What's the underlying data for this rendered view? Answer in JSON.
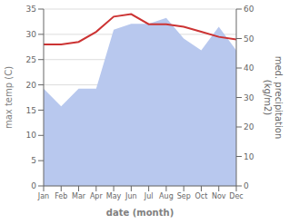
{
  "chart_data": {
    "type": "line",
    "categories": [
      "Jan",
      "Feb",
      "Mar",
      "Apr",
      "May",
      "Jun",
      "Jul",
      "Aug",
      "Sep",
      "Oct",
      "Nov",
      "Dec"
    ],
    "series": [
      {
        "type": "area",
        "axis": "y2",
        "color": "#b8c8ee",
        "values": [
          33.0,
          27.0,
          33.0,
          33.0,
          53.0,
          55.0,
          55.0,
          57.0,
          50.0,
          46.0,
          54.0,
          46.0
        ]
      },
      {
        "type": "line",
        "color": "#cc3333",
        "values": [
          28.0,
          28.0,
          28.5,
          30.5,
          33.5,
          34.0,
          32.0,
          32.0,
          31.5,
          30.5,
          29.5,
          29.0
        ]
      }
    ],
    "xlabel": "date (month)",
    "ylabel": "max temp (C)",
    "y2label": "med. precipitation\n(kg/m2)",
    "ylim": [
      0,
      35
    ],
    "yticks": [
      0,
      5,
      10,
      15,
      20,
      25,
      30,
      35
    ],
    "y2lim": [
      0,
      60
    ],
    "y2ticks": [
      0,
      10,
      20,
      30,
      40,
      50,
      60
    ],
    "grid": true
  }
}
